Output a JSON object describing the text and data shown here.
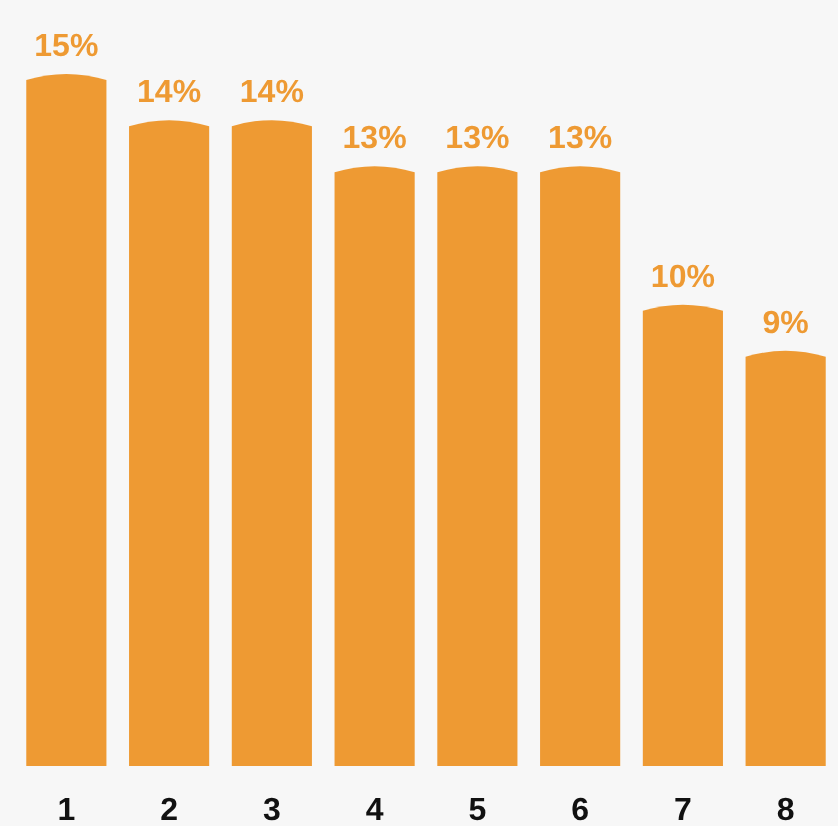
{
  "chart_data": {
    "type": "bar",
    "categories": [
      "1",
      "2",
      "3",
      "4",
      "5",
      "6",
      "7",
      "8"
    ],
    "values": [
      15,
      14,
      14,
      13,
      13,
      13,
      10,
      9
    ],
    "value_labels": [
      "15%",
      "14%",
      "14%",
      "13%",
      "13%",
      "13%",
      "10%",
      "9%"
    ],
    "color": "#ee9a33"
  }
}
